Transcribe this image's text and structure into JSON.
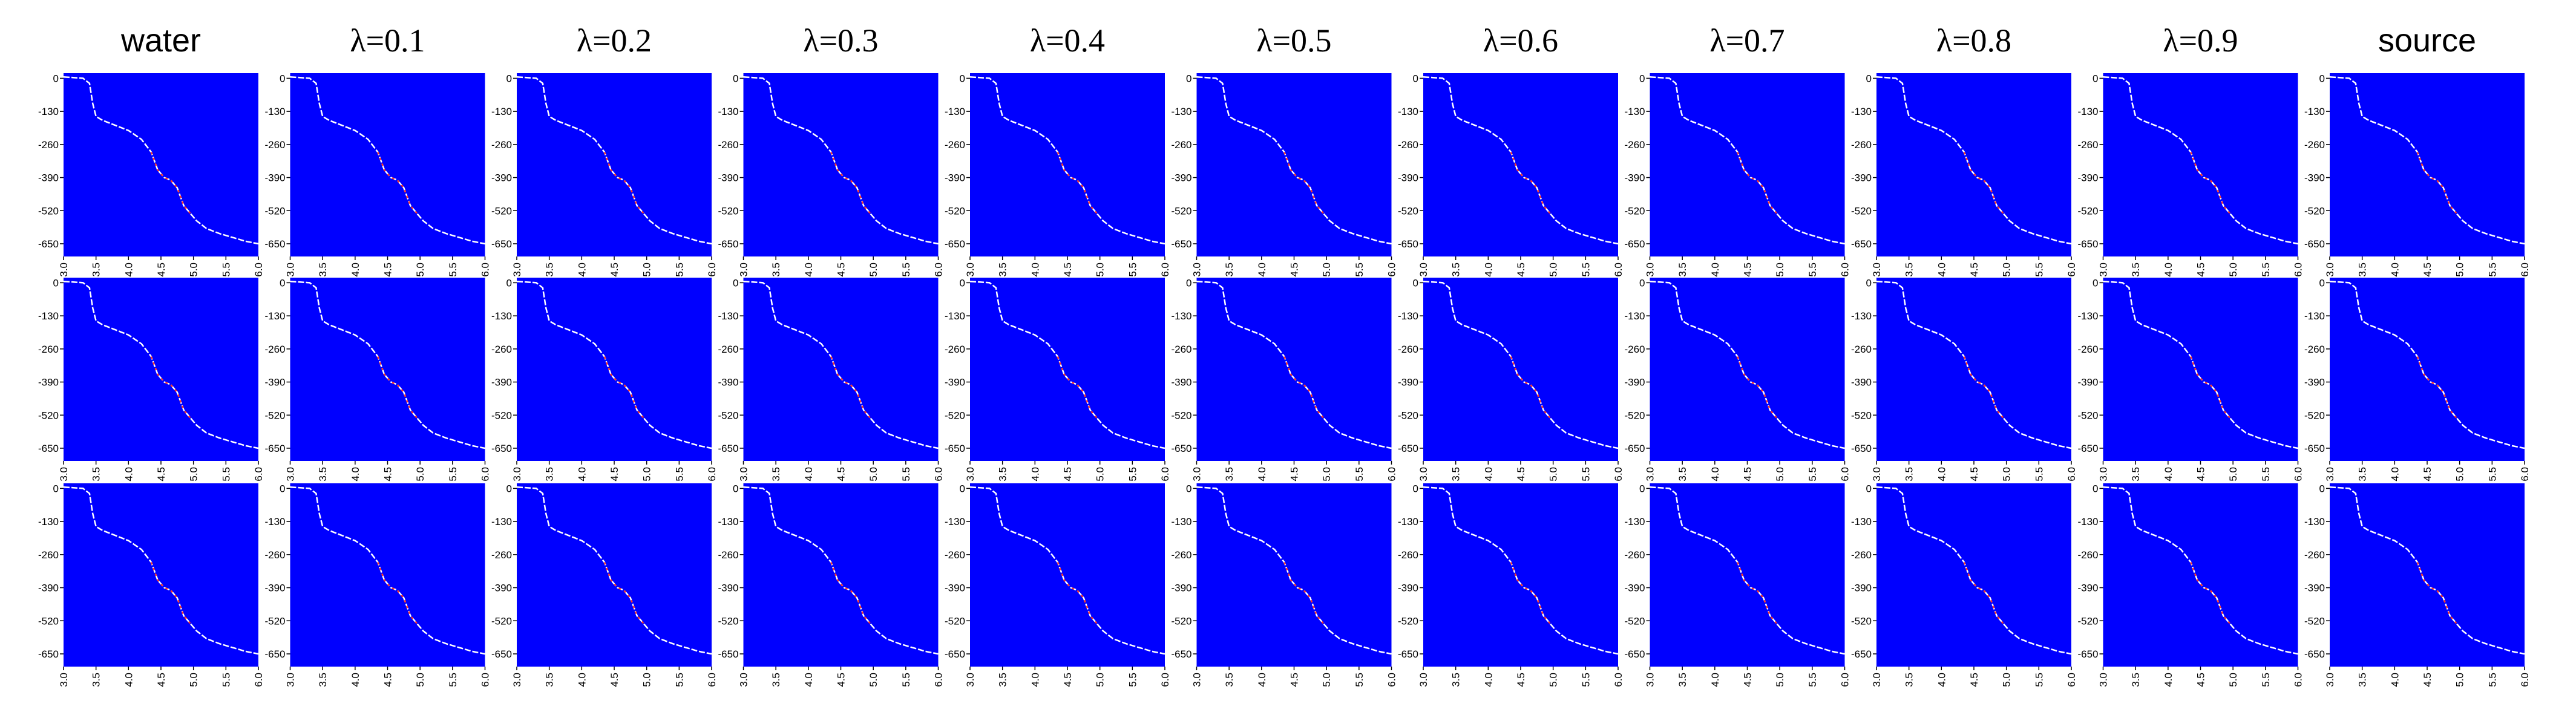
{
  "colors": {
    "panel_background": "#0000FF",
    "curve_primary": "#FFFFFF",
    "curve_accent": "#FF3A2A",
    "text": "#000000"
  },
  "columns": [
    {
      "title": "water",
      "title_font": "sans"
    },
    {
      "title": "λ=0.1",
      "title_font": "serif"
    },
    {
      "title": "λ=0.2",
      "title_font": "serif"
    },
    {
      "title": "λ=0.3",
      "title_font": "serif"
    },
    {
      "title": "λ=0.4",
      "title_font": "serif"
    },
    {
      "title": "λ=0.5",
      "title_font": "serif"
    },
    {
      "title": "λ=0.6",
      "title_font": "serif"
    },
    {
      "title": "λ=0.7",
      "title_font": "serif"
    },
    {
      "title": "λ=0.8",
      "title_font": "serif"
    },
    {
      "title": "λ=0.9",
      "title_font": "serif"
    },
    {
      "title": "source",
      "title_font": "sans"
    }
  ],
  "chart_data": {
    "type": "line",
    "layout": "small-multiples grid",
    "rows": 3,
    "cols": 11,
    "x_ticks": [
      "3.0",
      "3.5",
      "4.0",
      "4.5",
      "5.0",
      "5.5",
      "6.0"
    ],
    "y_ticks": [
      "0",
      "-130",
      "-260",
      "-390",
      "-520",
      "-650"
    ],
    "xlim": [
      3.0,
      6.0
    ],
    "ylim": [
      -700,
      20
    ],
    "grid": false,
    "curve": {
      "x": [
        3.0,
        3.15,
        3.3,
        3.4,
        3.45,
        3.5,
        3.6,
        3.8,
        4.0,
        4.2,
        4.35,
        4.45,
        4.55,
        4.65,
        4.75,
        4.85,
        4.95,
        5.05,
        5.2,
        5.4,
        5.6,
        5.8,
        6.0
      ],
      "y": [
        5,
        3,
        0,
        -20,
        -100,
        -150,
        -165,
        -185,
        -205,
        -240,
        -290,
        -360,
        -390,
        -400,
        -430,
        -500,
        -530,
        -560,
        -590,
        -610,
        -625,
        -640,
        -650
      ]
    },
    "accent_x_range": [
      4.35,
      4.95
    ]
  }
}
